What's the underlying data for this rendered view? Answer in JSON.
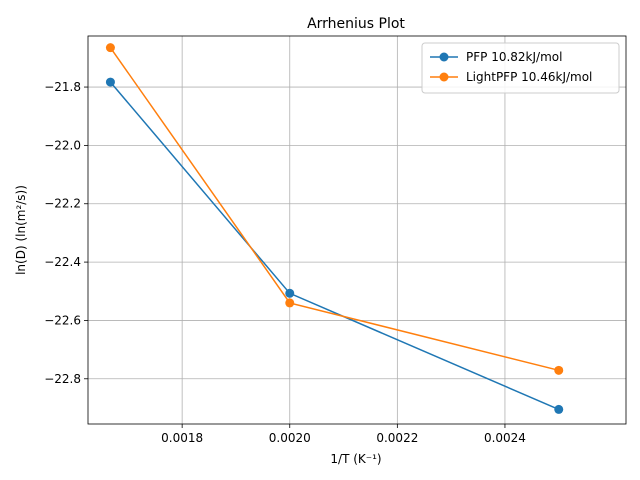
{
  "chart_data": {
    "type": "line",
    "title": "Arrhenius Plot",
    "xlabel": "1/T (K⁻¹)",
    "ylabel": "ln(D) (ln(m²/s))",
    "xlim": [
      0.001625,
      0.002625
    ],
    "ylim": [
      -22.955,
      -21.625
    ],
    "xticks": [
      0.0018,
      0.002,
      0.0022,
      0.0024
    ],
    "xtick_labels": [
      "0.0018",
      "0.0020",
      "0.0022",
      "0.0024"
    ],
    "yticks": [
      -22.8,
      -22.6,
      -22.4,
      -22.2,
      -22.0,
      -21.8
    ],
    "ytick_labels": [
      "−22.8",
      "−22.6",
      "−22.4",
      "−22.2",
      "−22.0",
      "−21.8"
    ],
    "grid": true,
    "legend_position": "top-right",
    "series": [
      {
        "name": "PFP 10.82kJ/mol",
        "color": "#1f77b4",
        "marker": "circle",
        "x": [
          0.0016667,
          0.002,
          0.0025
        ],
        "y": [
          -21.783,
          -22.507,
          -22.905
        ]
      },
      {
        "name": "LightPFP 10.46kJ/mol",
        "color": "#ff7f0e",
        "marker": "circle",
        "x": [
          0.0016667,
          0.002,
          0.0025
        ],
        "y": [
          -21.665,
          -22.54,
          -22.771
        ]
      }
    ]
  }
}
